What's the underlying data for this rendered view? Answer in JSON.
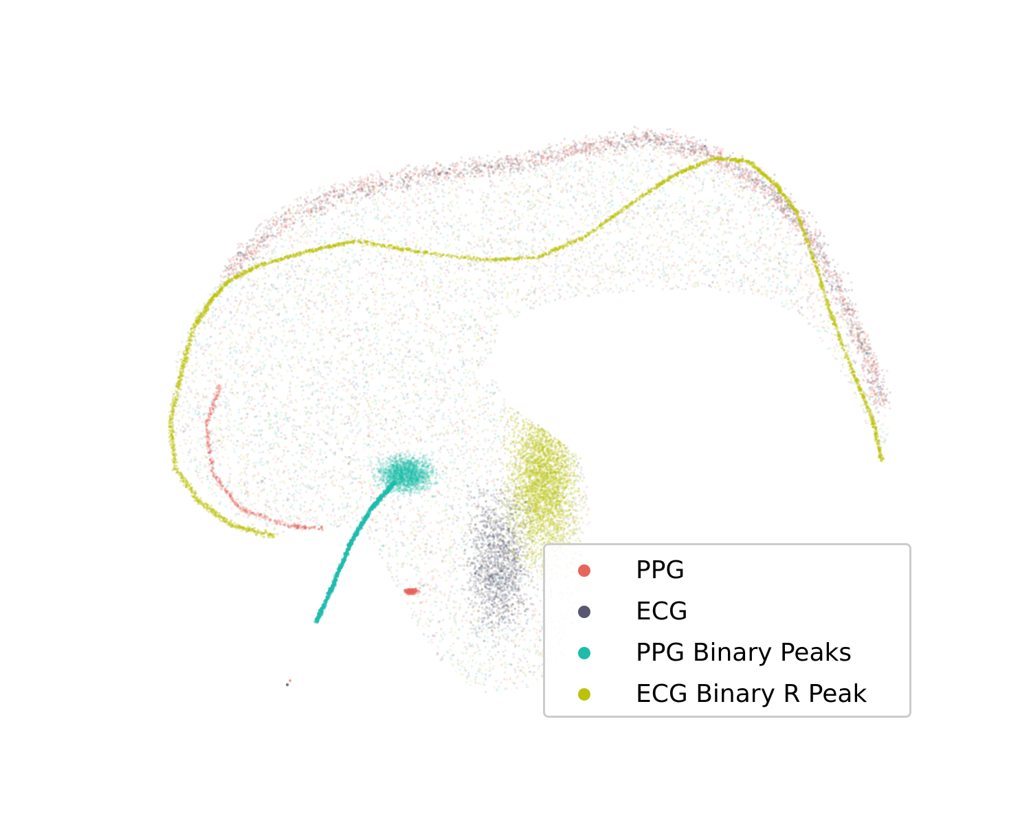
{
  "chart_data": {
    "type": "scatter",
    "title": "",
    "xlabel": "",
    "ylabel": "",
    "axes_visible": false,
    "grid": false,
    "legend_position": "lower-right",
    "marker_alpha": 0.12,
    "series": [
      {
        "name": "PPG",
        "color": "#e8655a"
      },
      {
        "name": "ECG",
        "color": "#585670"
      },
      {
        "name": "PPG Binary Peaks",
        "color": "#1fbcac"
      },
      {
        "name": "ECG Binary R Peak",
        "color": "#bcc20c"
      }
    ]
  },
  "legend": {
    "items": [
      {
        "label": "PPG",
        "color": "#e8655a"
      },
      {
        "label": "ECG",
        "color": "#585670"
      },
      {
        "label": "PPG Binary Peaks",
        "color": "#1fbcac"
      },
      {
        "label": "ECG Binary R Peak",
        "color": "#bcc20c"
      }
    ]
  }
}
